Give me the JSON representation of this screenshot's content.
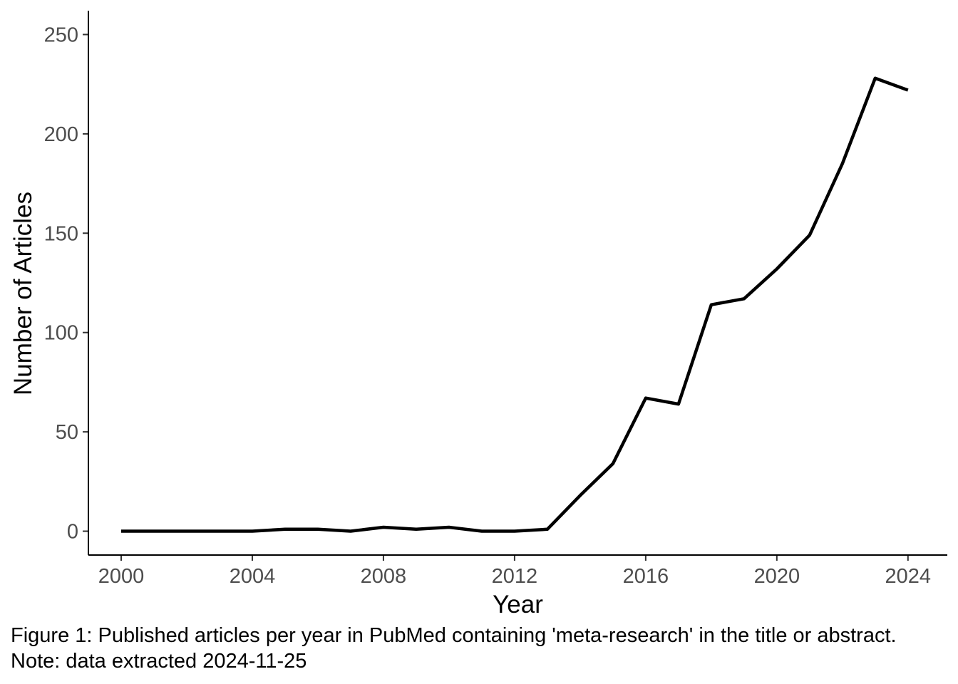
{
  "chart_data": {
    "type": "line",
    "xlabel": "Year",
    "ylabel": "Number of Articles",
    "x_ticks": [
      2000,
      2004,
      2008,
      2012,
      2016,
      2020,
      2024
    ],
    "y_ticks": [
      0,
      50,
      100,
      150,
      200,
      250
    ],
    "xlim": [
      1999,
      2025.2
    ],
    "ylim": [
      -12,
      262
    ],
    "grid": false,
    "line_color": "#000000",
    "series": [
      {
        "x": [
          2000,
          2001,
          2002,
          2003,
          2004,
          2005,
          2006,
          2007,
          2008,
          2009,
          2010,
          2011,
          2012,
          2013,
          2014,
          2015,
          2016,
          2017,
          2018,
          2019,
          2020,
          2021,
          2022,
          2023,
          2024
        ],
        "values": [
          0,
          0,
          0,
          0,
          0,
          1,
          1,
          0,
          2,
          1,
          2,
          0,
          0,
          1,
          18,
          34,
          67,
          64,
          114,
          117,
          132,
          149,
          185,
          228,
          222
        ]
      }
    ]
  },
  "caption": "Figure 1: Published articles per year in PubMed containing 'meta-research' in the title or abstract. Note: data extracted 2024-11-25"
}
